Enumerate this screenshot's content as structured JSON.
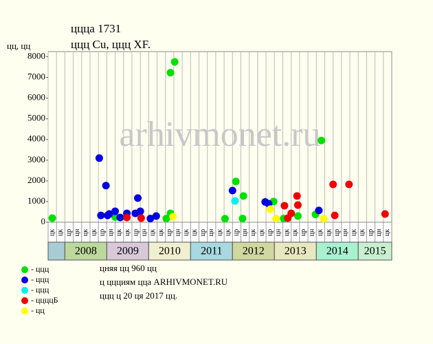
{
  "chart_data": {
    "type": "scatter",
    "title": "ццца 1731",
    "subtitle": "ццц Cu, ццц XF.",
    "y_label": "цц, цц",
    "watermark": "arhivmonet.ru",
    "ylim": [
      0,
      8250
    ],
    "yticks": [
      0,
      1000,
      2000,
      3000,
      4000,
      5000,
      6000,
      7000,
      8000
    ],
    "xlim": [
      0,
      41
    ],
    "columns": [
      "цк",
      "цк",
      "цр",
      "цн",
      "цк",
      "цк",
      "цр",
      "цн",
      "цк",
      "цк",
      "цр",
      "цн",
      "цк",
      "цк",
      "цр",
      "цн",
      "цк",
      "цк",
      "цр",
      "цн",
      "цк",
      "цк",
      "цр",
      "цн",
      "цк",
      "цк",
      "цр",
      "цн",
      "цк",
      "цк",
      "цр",
      "цн",
      "цк",
      "цк",
      "цр",
      "цн",
      "цк",
      "цк",
      "цр",
      "цн",
      "цк"
    ],
    "year_groups": [
      {
        "label": null,
        "columns": 2,
        "color": "#a8ccd4"
      },
      {
        "label": "2008",
        "columns": 5,
        "color": "#bcd89c"
      },
      {
        "label": "2009",
        "columns": 5,
        "color": "#d8c8d8"
      },
      {
        "label": "2010",
        "columns": 5,
        "color": "#f0f0d0"
      },
      {
        "label": "2011",
        "columns": 5,
        "color": "#a8d8e0"
      },
      {
        "label": "2012",
        "columns": 5,
        "color": "#d0d8a0"
      },
      {
        "label": "2013",
        "columns": 5,
        "color": "#e8e8c0"
      },
      {
        "label": "2014",
        "columns": 5,
        "color": "#a8f0d0"
      },
      {
        "label": "2015",
        "columns": 4,
        "color": "#c8f0d0"
      }
    ],
    "series": [
      {
        "name": "- ццц",
        "color": "#00e000",
        "x": [
          0.5,
          14.6,
          15.1,
          14.1,
          14.6,
          8.0,
          21.1,
          22.4,
          23.3,
          23.2,
          26.9,
          28.1,
          29.8,
          31.9,
          32.6
        ],
        "values": [
          200,
          7230,
          7750,
          180,
          430,
          250,
          170,
          1970,
          1270,
          180,
          1000,
          180,
          300,
          380,
          3950
        ]
      },
      {
        "name": "- ццц",
        "color": "#0000e0",
        "x": [
          6.1,
          6.9,
          6.3,
          7.1,
          7.3,
          8.0,
          8.6,
          9.4,
          10.7,
          10.4,
          11.0,
          12.2,
          12.9,
          22.0,
          25.9,
          26.3,
          32.3
        ],
        "values": [
          3100,
          1770,
          330,
          330,
          400,
          530,
          230,
          430,
          1170,
          430,
          530,
          180,
          300,
          1530,
          980,
          900,
          570
        ]
      },
      {
        "name": "- ццц",
        "color": "#00f0f0",
        "x": [
          22.3
        ],
        "values": [
          1030
        ]
      },
      {
        "name": "- ццццБ",
        "color": "#f00000",
        "x": [
          9.4,
          11.1,
          28.2,
          29.0,
          28.6,
          29.7,
          29.8,
          34.0,
          34.2,
          35.9,
          40.2
        ],
        "values": [
          230,
          200,
          800,
          430,
          200,
          1270,
          830,
          1830,
          330,
          1830,
          400
        ]
      },
      {
        "name": "- цц",
        "color": "#ffff00",
        "x": [
          14.9,
          26.5,
          27.2,
          32.9
        ],
        "values": [
          270,
          630,
          180,
          170
        ]
      }
    ],
    "notes": [
      "цняя цц 960 цц",
      "ц ццциям цца ARHIVMONET.RU",
      "ццц ц 20 ця 2017 цц."
    ]
  }
}
